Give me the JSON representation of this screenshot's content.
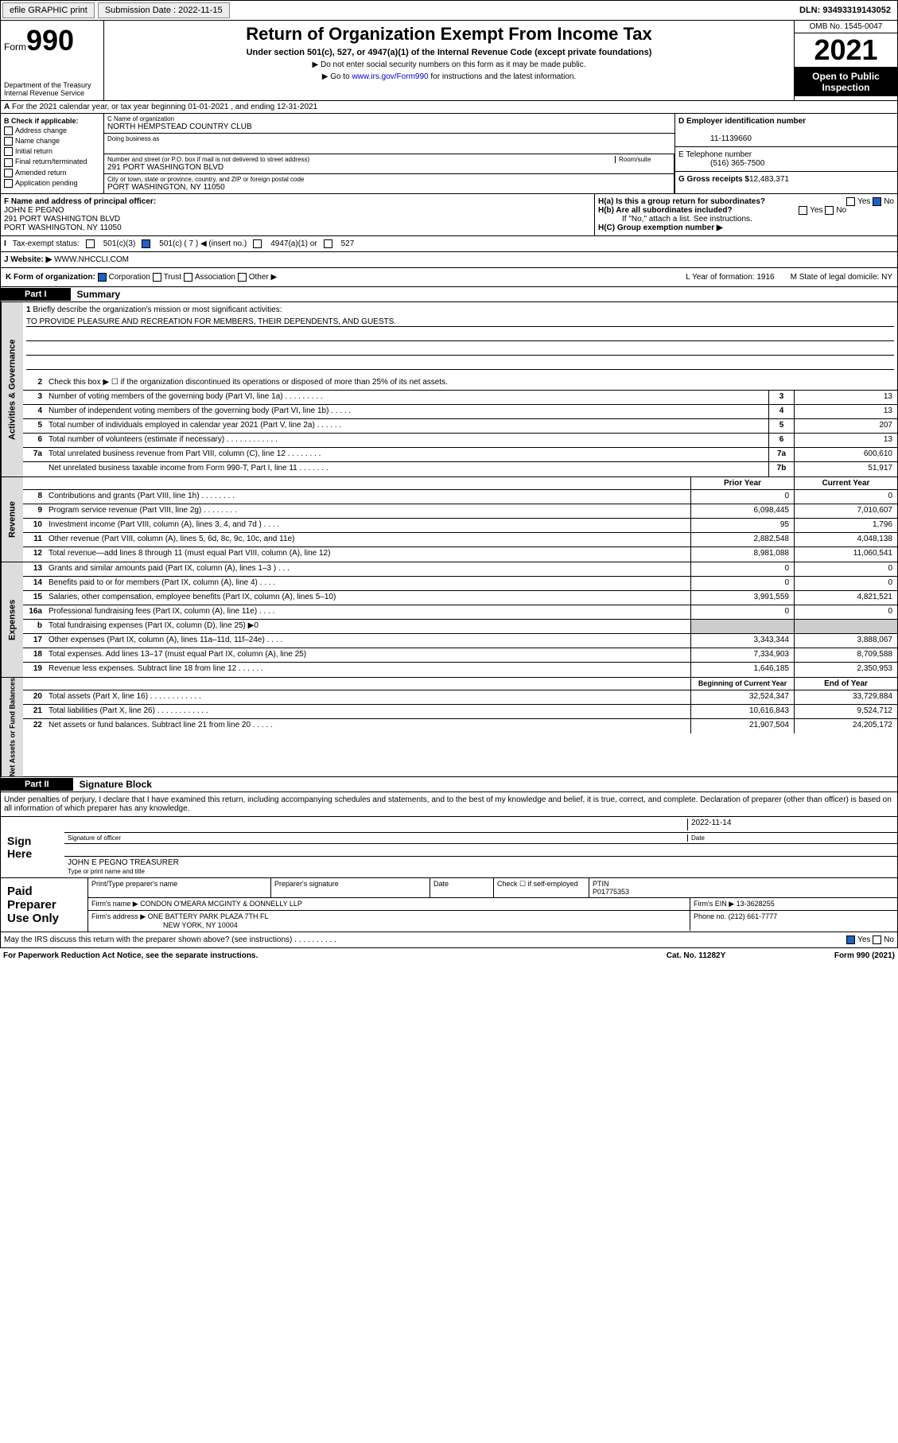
{
  "topbar": {
    "efile": "efile GRAPHIC print",
    "sub": "Submission Date : 2022-11-15",
    "dln": "DLN: 93493319143052"
  },
  "header": {
    "form": "Form",
    "num": "990",
    "dept": "Department of the Treasury\nInternal Revenue Service",
    "title": "Return of Organization Exempt From Income Tax",
    "sub": "Under section 501(c), 527, or 4947(a)(1) of the Internal Revenue Code (except private foundations)",
    "note1": "▶ Do not enter social security numbers on this form as it may be made public.",
    "note2": "▶ Go to www.irs.gov/Form990 for instructions and the latest information.",
    "omb": "OMB No. 1545-0047",
    "year": "2021",
    "open": "Open to Public Inspection"
  },
  "rowA": "For the 2021 calendar year, or tax year beginning 01-01-2021   , and ending 12-31-2021",
  "b": {
    "hdr": "B Check if applicable:",
    "opts": [
      "Address change",
      "Name change",
      "Initial return",
      "Final return/terminated",
      "Amended return",
      "Application pending"
    ]
  },
  "c": {
    "lbl": "C Name of organization",
    "name": "NORTH HEMPSTEAD COUNTRY CLUB",
    "dba": "Doing business as",
    "addrLbl": "Number and street (or P.O. box if mail is not delivered to street address)",
    "room": "Room/suite",
    "addr": "291 PORT WASHINGTON BLVD",
    "cityLbl": "City or town, state or province, country, and ZIP or foreign postal code",
    "city": "PORT WASHINGTON, NY  11050"
  },
  "d": {
    "lbl": "D Employer identification number",
    "val": "11-1139660"
  },
  "e": {
    "lbl": "E Telephone number",
    "val": "(516) 365-7500"
  },
  "g": {
    "lbl": "G Gross receipts $",
    "val": "12,483,371"
  },
  "f": {
    "lbl": "F  Name and address of principal officer:",
    "name": "JOHN E PEGNO",
    "addr": "291 PORT WASHINGTON BLVD",
    "city": "PORT WASHINGTON, NY  11050"
  },
  "h": {
    "a": "H(a)  Is this a group return for subordinates?",
    "b": "H(b)  Are all subordinates included?",
    "bnote": "If \"No,\" attach a list. See instructions.",
    "c": "H(C)  Group exemption number ▶"
  },
  "i": {
    "lbl": "Tax-exempt status:",
    "o1": "501(c)(3)",
    "o2": "501(c) ( 7 ) ◀ (insert no.)",
    "o3": "4947(a)(1) or",
    "o4": "527"
  },
  "j": {
    "lbl": "Website: ▶",
    "val": "WWW.NHCCLI.COM"
  },
  "k": {
    "lbl": "K Form of organization:",
    "o1": "Corporation",
    "o2": "Trust",
    "o3": "Association",
    "o4": "Other ▶"
  },
  "l": {
    "lbl": "L Year of formation: 1916"
  },
  "m": {
    "lbl": "M State of legal domicile: NY"
  },
  "part1": {
    "hdr": "Part I",
    "title": "Summary"
  },
  "sideLabels": [
    "Activities & Governance",
    "Revenue",
    "Expenses",
    "Net Assets or Fund Balances"
  ],
  "mission": {
    "num": "1",
    "txt": "Briefly describe the organization's mission or most significant activities:",
    "val": "TO PROVIDE PLEASURE AND RECREATION FOR MEMBERS, THEIR DEPENDENTS, AND GUESTS."
  },
  "lines": [
    {
      "n": "2",
      "t": "Check this box ▶ ☐  if the organization discontinued its operations or disposed of more than 25% of its net assets."
    },
    {
      "n": "3",
      "t": "Number of voting members of the governing body (Part VI, line 1a)   .    .    .    .    .    .    .    .    .",
      "b": "3",
      "v": "13"
    },
    {
      "n": "4",
      "t": "Number of independent voting members of the governing body (Part VI, line 1b)   .    .    .    .    .",
      "b": "4",
      "v": "13"
    },
    {
      "n": "5",
      "t": "Total number of individuals employed in calendar year 2021 (Part V, line 2a)   .    .    .    .    .    .",
      "b": "5",
      "v": "207"
    },
    {
      "n": "6",
      "t": "Total number of volunteers (estimate if necessary)   .    .    .    .    .    .    .    .    .    .    .    .",
      "b": "6",
      "v": "13"
    },
    {
      "n": "7a",
      "t": "Total unrelated business revenue from Part VIII, column (C), line 12   .    .    .    .    .    .    .    .",
      "b": "7a",
      "v": "600,610"
    },
    {
      "n": "",
      "t": "Net unrelated business taxable income from Form 990-T, Part I, line 11   .    .    .    .    .    .    .",
      "b": "7b",
      "v": "51,917"
    }
  ],
  "hdr2": {
    "py": "Prior Year",
    "cy": "Current Year"
  },
  "rev": [
    {
      "n": "8",
      "t": "Contributions and grants (Part VIII, line 1h)   .    .    .    .    .    .    .    .",
      "p": "0",
      "c": "0"
    },
    {
      "n": "9",
      "t": "Program service revenue (Part VIII, line 2g)   .    .    .    .    .    .    .    .",
      "p": "6,098,445",
      "c": "7,010,607"
    },
    {
      "n": "10",
      "t": "Investment income (Part VIII, column (A), lines 3, 4, and 7d )   .    .    .    .",
      "p": "95",
      "c": "1,796"
    },
    {
      "n": "11",
      "t": "Other revenue (Part VIII, column (A), lines 5, 6d, 8c, 9c, 10c, and 11e)",
      "p": "2,882,548",
      "c": "4,048,138"
    },
    {
      "n": "12",
      "t": "Total revenue—add lines 8 through 11 (must equal Part VIII, column (A), line 12)",
      "p": "8,981,088",
      "c": "11,060,541"
    }
  ],
  "exp": [
    {
      "n": "13",
      "t": "Grants and similar amounts paid (Part IX, column (A), lines 1–3 )   .    .    .",
      "p": "0",
      "c": "0"
    },
    {
      "n": "14",
      "t": "Benefits paid to or for members (Part IX, column (A), line 4)   .    .    .    .",
      "p": "0",
      "c": "0"
    },
    {
      "n": "15",
      "t": "Salaries, other compensation, employee benefits (Part IX, column (A), lines 5–10)",
      "p": "3,991,559",
      "c": "4,821,521"
    },
    {
      "n": "16a",
      "t": "Professional fundraising fees (Part IX, column (A), line 11e)   .    .    .    .",
      "p": "0",
      "c": "0"
    },
    {
      "n": "b",
      "t": "Total fundraising expenses (Part IX, column (D), line 25) ▶0",
      "p": "",
      "c": "",
      "grey": true
    },
    {
      "n": "17",
      "t": "Other expenses (Part IX, column (A), lines 11a–11d, 11f–24e)   .    .    .    .",
      "p": "3,343,344",
      "c": "3,888,067"
    },
    {
      "n": "18",
      "t": "Total expenses. Add lines 13–17 (must equal Part IX, column (A), line 25)",
      "p": "7,334,903",
      "c": "8,709,588"
    },
    {
      "n": "19",
      "t": "Revenue less expenses. Subtract line 18 from line 12   .    .    .    .    .    .",
      "p": "1,646,185",
      "c": "2,350,953"
    }
  ],
  "hdr3": {
    "py": "Beginning of Current Year",
    "cy": "End of Year"
  },
  "net": [
    {
      "n": "20",
      "t": "Total assets (Part X, line 16)   .    .    .    .    .    .    .    .    .    .    .    .",
      "p": "32,524,347",
      "c": "33,729,884"
    },
    {
      "n": "21",
      "t": "Total liabilities (Part X, line 26)   .    .    .    .    .    .    .    .    .    .    .    .",
      "p": "10,616,843",
      "c": "9,524,712"
    },
    {
      "n": "22",
      "t": "Net assets or fund balances. Subtract line 21 from line 20   .    .    .    .    .",
      "p": "21,907,504",
      "c": "24,205,172"
    }
  ],
  "part2": {
    "hdr": "Part II",
    "title": "Signature Block"
  },
  "decl": "Under penalties of perjury, I declare that I have examined this return, including accompanying schedules and statements, and to the best of my knowledge and belief, it is true, correct, and complete. Declaration of preparer (other than officer) is based on all information of which preparer has any knowledge.",
  "sign": {
    "hdr": "Sign Here",
    "sigLbl": "Signature of officer",
    "date": "2022-11-14",
    "dateLbl": "Date",
    "name": "JOHN E PEGNO  TREASURER",
    "nameLbl": "Type or print name and title"
  },
  "prep": {
    "hdr": "Paid Preparer Use Only",
    "h1": "Print/Type preparer's name",
    "h2": "Preparer's signature",
    "h3": "Date",
    "h4": "Check ☐ if self-employed",
    "h5": "PTIN",
    "ptin": "P01775353",
    "firmLbl": "Firm's name    ▶",
    "firm": "CONDON O'MEARA MCGINTY & DONNELLY LLP",
    "einLbl": "Firm's EIN ▶",
    "ein": "13-3628255",
    "addrLbl": "Firm's address ▶",
    "addr": "ONE BATTERY PARK PLAZA 7TH FL",
    "city": "NEW YORK, NY  10004",
    "phLbl": "Phone no.",
    "ph": "(212) 661-7777"
  },
  "footer": {
    "q": "May the IRS discuss this return with the preparer shown above? (see instructions)   .    .    .    .    .    .    .    .    .    .",
    "yes": "Yes",
    "no": "No"
  },
  "bottom": {
    "l": "For Paperwork Reduction Act Notice, see the separate instructions.",
    "m": "Cat. No. 11282Y",
    "r": "Form 990 (2021)"
  }
}
